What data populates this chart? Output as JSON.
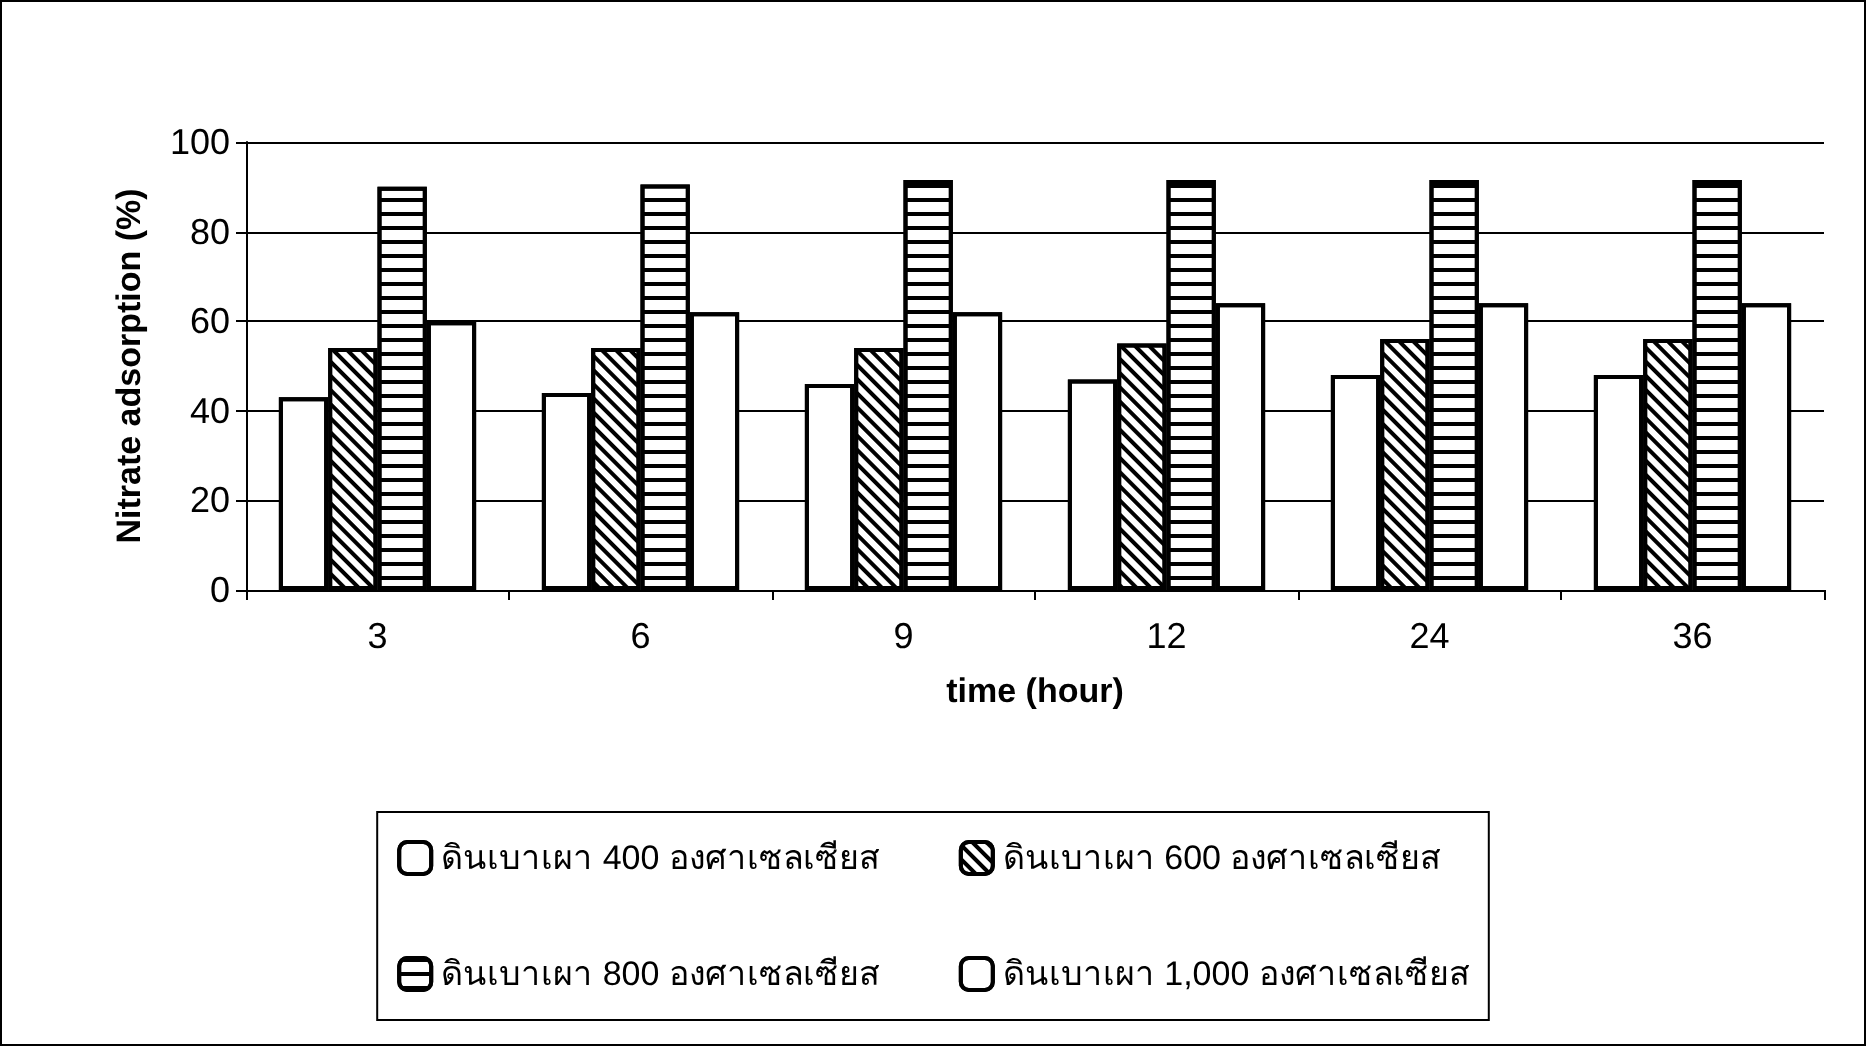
{
  "chart_data": {
    "type": "bar",
    "xlabel": "time (hour)",
    "ylabel": "Nitrate adsorption (%)",
    "categories": [
      "3",
      "6",
      "9",
      "12",
      "24",
      "36"
    ],
    "series": [
      {
        "name": "ดินเบาเผา 400 องศาเซลเซียส",
        "color": "#ffffff",
        "values": [
          43,
          44,
          46,
          47,
          48,
          48
        ]
      },
      {
        "name": "ดินเบาเผา 600 องศาเซลเซียส",
        "color": "#ffffff",
        "values": [
          54,
          54,
          54,
          55,
          56,
          56
        ]
      },
      {
        "name": "ดินเบาเผา 800 องศาเซลเซียส",
        "color": "#ffffff",
        "values": [
          90,
          90.5,
          91.5,
          91.5,
          91.5,
          91.5
        ]
      },
      {
        "name": "ดินเบาเผา 1,000 องศาเซลเซียส",
        "color": "#ffffff",
        "values": [
          60,
          62,
          62,
          64,
          64,
          64
        ]
      }
    ],
    "ylim": [
      0,
      100
    ],
    "yticks": [
      0,
      20,
      40,
      60,
      80,
      100
    ],
    "grid": "y",
    "legend": "bottom"
  }
}
